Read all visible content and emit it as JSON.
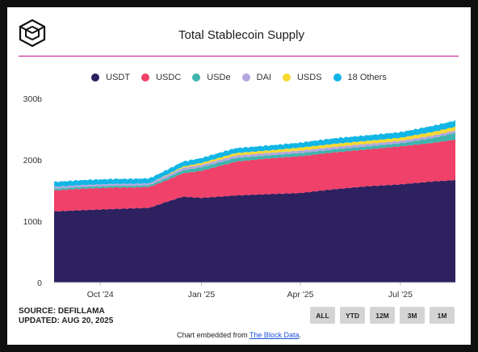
{
  "title": "Total Stablecoin Supply",
  "source_line": "SOURCE: DEFILLAMA",
  "updated_line": "UPDATED: AUG 20, 2025",
  "embed_prefix": "Chart embedded from ",
  "embed_link": "The Block Data",
  "embed_suffix": ".",
  "buttons": [
    "ALL",
    "YTD",
    "12M",
    "3M",
    "1M"
  ],
  "colors": {
    "rule": "#c2118c"
  },
  "chart_data": {
    "type": "area",
    "stacked": true,
    "legend_position": "top",
    "grid": false,
    "y_ticks": [
      "0",
      "100b",
      "200b",
      "300b"
    ],
    "x_ticks": [
      "Oct '24",
      "Jan '25",
      "Apr '25",
      "Jul '25"
    ],
    "ylim": [
      0,
      300
    ],
    "x_dates": [
      "2024-08-20",
      "2024-09-15",
      "2024-10-15",
      "2024-11-01",
      "2024-11-15",
      "2024-12-01",
      "2024-12-15",
      "2025-01-01",
      "2025-02-01",
      "2025-03-01",
      "2025-04-01",
      "2025-05-01",
      "2025-06-01",
      "2025-07-01",
      "2025-08-01",
      "2025-08-20"
    ],
    "series": [
      {
        "name": "USDT",
        "color": "#2d2160",
        "values": [
          116,
          118,
          120,
          121,
          122,
          132,
          140,
          138,
          142,
          144,
          146,
          152,
          157,
          160,
          165,
          167
        ]
      },
      {
        "name": "USDC",
        "color": "#ef4169",
        "values": [
          34,
          35,
          35,
          34,
          34,
          35,
          38,
          44,
          55,
          58,
          60,
          60,
          60,
          62,
          63,
          66
        ]
      },
      {
        "name": "USDe",
        "color": "#3fb5ad",
        "values": [
          3,
          3,
          3,
          3,
          3,
          4,
          5,
          6,
          6,
          5,
          5,
          5,
          5,
          5,
          8,
          11
        ]
      },
      {
        "name": "DAI",
        "color": "#b3a6e0",
        "values": [
          3,
          3,
          3,
          3,
          3,
          4,
          4,
          4,
          4,
          4,
          4,
          4,
          4,
          4,
          4,
          4
        ]
      },
      {
        "name": "USDS",
        "color": "#f7d931",
        "values": [
          0,
          0,
          0,
          0,
          0,
          1,
          2,
          3,
          4,
          4,
          5,
          5,
          5,
          5,
          6,
          6
        ]
      },
      {
        "name": "18 Others",
        "color": "#12b6e6",
        "values": [
          8,
          8,
          8,
          8,
          8,
          8,
          8,
          8,
          8,
          8,
          8,
          9,
          9,
          9,
          10,
          10
        ]
      }
    ]
  }
}
